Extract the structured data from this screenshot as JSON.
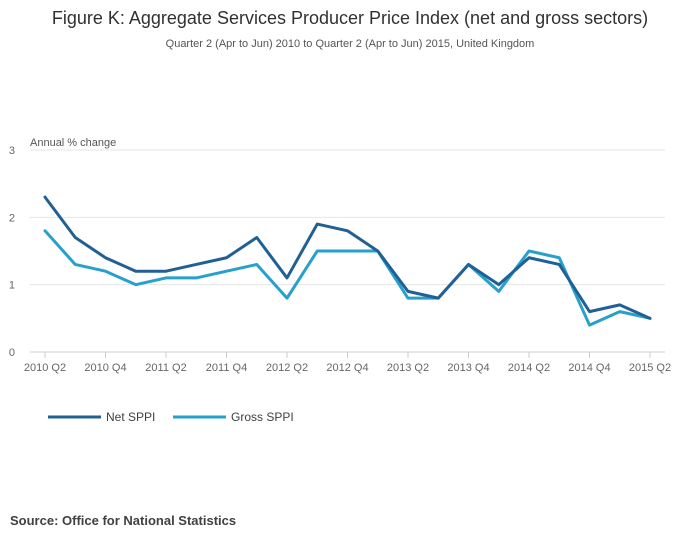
{
  "header": {
    "title": "Figure K: Aggregate Services Producer Price Index (net and gross sectors)",
    "subtitle": "Quarter 2 (Apr to Jun) 2010 to Quarter 2 (Apr to Jun) 2015, United Kingdom"
  },
  "footer": {
    "source": "Source: Office for National Statistics"
  },
  "colors": {
    "net": "#206095",
    "gross": "#27a0cc",
    "grid": "#e6e6e6",
    "axis": "#cccccc",
    "text": "#323132"
  },
  "chart_data": {
    "type": "line",
    "title": "Figure K: Aggregate Services Producer Price Index (net and gross sectors)",
    "ylabel": "Annual % change",
    "xlabel": "",
    "ylim": [
      0,
      3
    ],
    "yticks": [
      0,
      1,
      2,
      3
    ],
    "categories": [
      "2010 Q2",
      "2010 Q3",
      "2010 Q4",
      "2011 Q1",
      "2011 Q2",
      "2011 Q3",
      "2011 Q4",
      "2012 Q1",
      "2012 Q2",
      "2012 Q3",
      "2012 Q4",
      "2013 Q1",
      "2013 Q2",
      "2013 Q3",
      "2013 Q4",
      "2014 Q1",
      "2014 Q2",
      "2014 Q3",
      "2014 Q4",
      "2015 Q1",
      "2015 Q2"
    ],
    "tick_labels": [
      "2010 Q2",
      "2010 Q4",
      "2011 Q2",
      "2011 Q4",
      "2012 Q2",
      "2012 Q4",
      "2013 Q2",
      "2013 Q4",
      "2014 Q2",
      "2014 Q4",
      "2015 Q2"
    ],
    "legend_position": "bottom-left",
    "grid": true,
    "series": [
      {
        "name": "Net SPPI",
        "key": "net",
        "values": [
          2.3,
          1.7,
          1.4,
          1.2,
          1.2,
          1.3,
          1.4,
          1.7,
          1.1,
          1.9,
          1.8,
          1.5,
          0.9,
          0.8,
          1.3,
          1.0,
          1.4,
          1.3,
          0.6,
          0.7,
          0.5
        ]
      },
      {
        "name": "Gross SPPI",
        "key": "gross",
        "values": [
          1.8,
          1.3,
          1.2,
          1.0,
          1.1,
          1.1,
          1.2,
          1.3,
          0.8,
          1.5,
          1.5,
          1.5,
          0.8,
          0.8,
          1.3,
          0.9,
          1.5,
          1.4,
          0.4,
          0.6,
          0.5
        ]
      }
    ]
  }
}
